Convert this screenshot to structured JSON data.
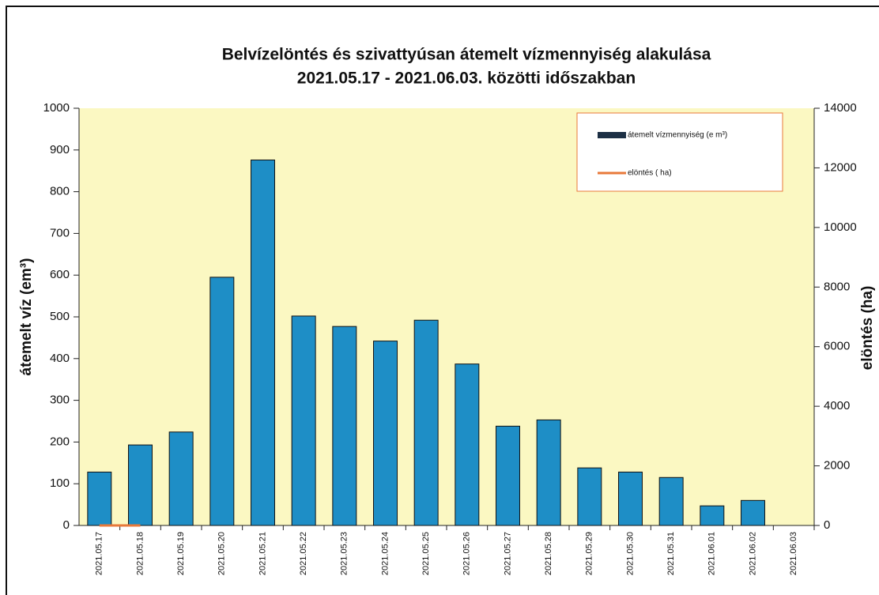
{
  "chart_data": {
    "type": "bar",
    "title": [
      "Belvízelöntés és szivattyúsan átemelt vízmennyiség alakulása",
      "2021.05.17 - 2021.06.03.  közötti időszakban"
    ],
    "ylabel": "átemelt víz (em³)",
    "y2label": "elöntés (ha)",
    "categories": [
      "2021.05.17",
      "2021.05.18",
      "2021.05.19",
      "2021.05.20",
      "2021.05.21",
      "2021.05.22",
      "2021.05.23",
      "2021.05.24",
      "2021.05.25",
      "2021.05.26",
      "2021.05.27",
      "2021.05.28",
      "2021.05.29",
      "2021.05.30",
      "2021.05.31",
      "2021.06.01",
      "2021.06.02",
      "2021.06.03"
    ],
    "series": [
      {
        "name": "átemelt vízmennyiség (e m³)",
        "type": "bar",
        "color": "#1e8ec6",
        "values": [
          128,
          193,
          224,
          595,
          876,
          502,
          477,
          442,
          492,
          387,
          238,
          253,
          138,
          128,
          115,
          47,
          60,
          0
        ]
      },
      {
        "name": "elöntés ( ha)",
        "type": "line",
        "axis": "y2",
        "color": "#e8793a",
        "values": [
          0,
          0,
          null,
          null,
          null,
          null,
          null,
          null,
          null,
          null,
          null,
          null,
          null,
          null,
          null,
          null,
          null,
          null
        ]
      }
    ],
    "ylim": [
      0,
      1000
    ],
    "yticks": [
      0,
      100,
      200,
      300,
      400,
      500,
      600,
      700,
      800,
      900,
      1000
    ],
    "y2lim": [
      0,
      14000
    ],
    "y2ticks": [
      0,
      2000,
      4000,
      6000,
      8000,
      10000,
      12000,
      14000
    ],
    "background": "#fbf8c2",
    "legend": "top-right"
  }
}
